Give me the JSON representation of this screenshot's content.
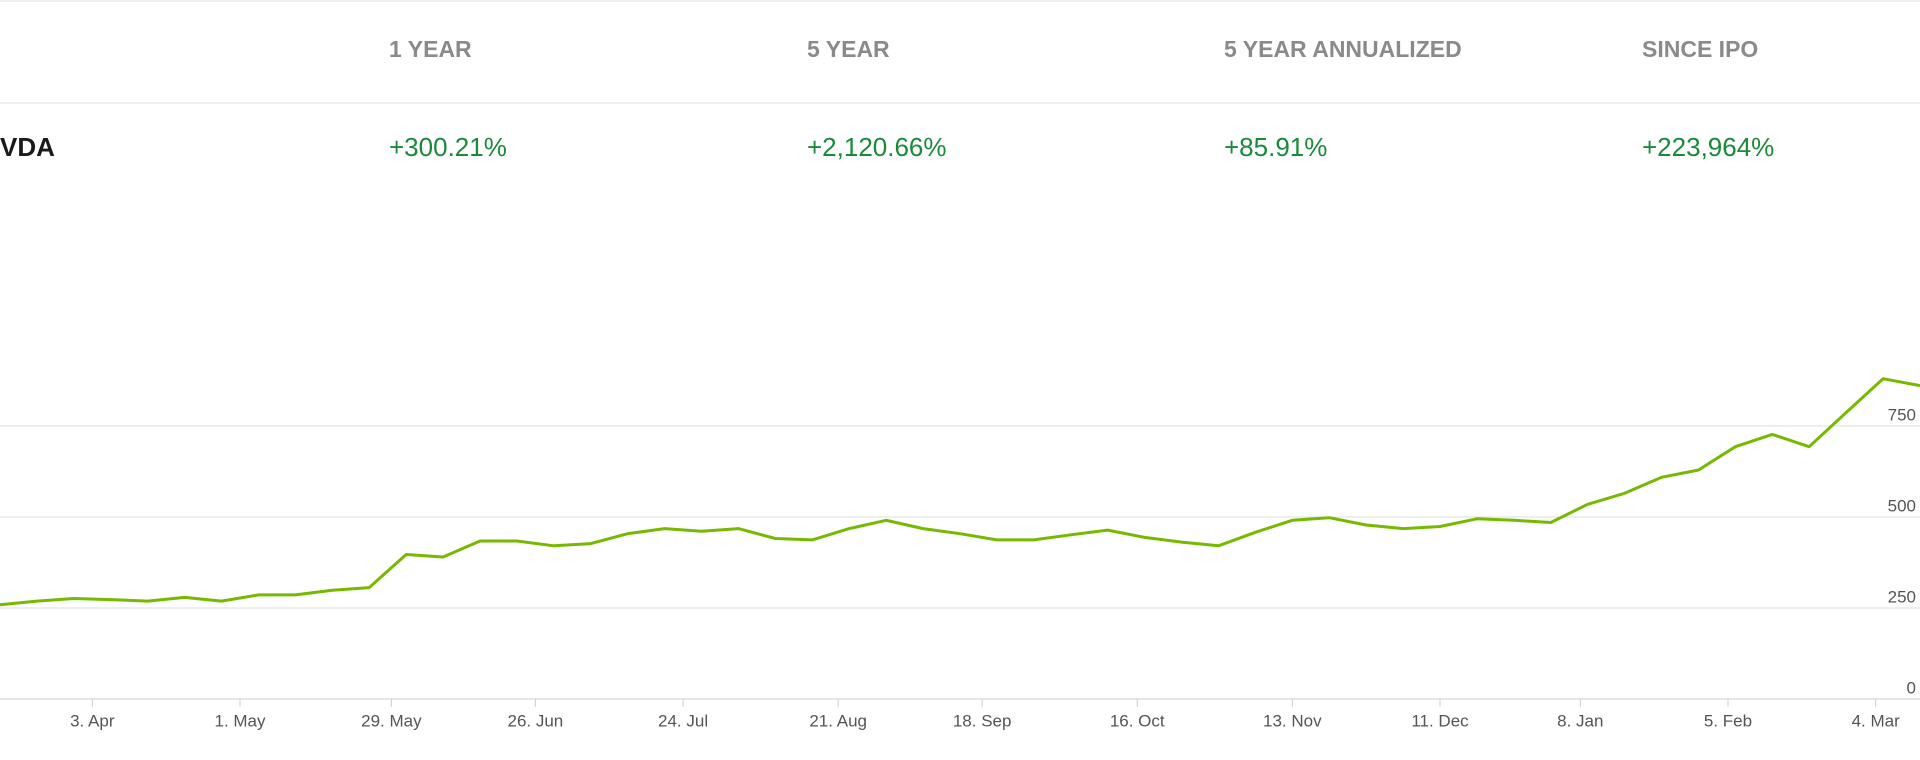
{
  "table": {
    "headers": [
      "1 YEAR",
      "5 YEAR",
      "5 YEAR ANNUALIZED",
      "SINCE IPO"
    ],
    "rows": [
      {
        "name": "VDA",
        "values": [
          "+300.21%",
          "+2,120.66%",
          "+85.91%",
          "+223,964%"
        ]
      }
    ]
  },
  "chart_data": {
    "type": "line",
    "series": [
      {
        "color": "#76b900",
        "values": [
          259,
          269,
          276,
          273,
          269,
          279,
          269,
          286,
          286,
          299,
          306,
          397,
          390,
          434,
          434,
          421,
          427,
          454,
          468,
          461,
          468,
          441,
          437,
          468,
          491,
          468,
          454,
          437,
          437,
          451,
          464,
          444,
          431,
          421,
          458,
          491,
          498,
          478,
          468,
          474,
          495,
          491,
          485,
          535,
          565,
          609,
          629,
          693,
          727,
          693,
          787,
          880,
          861
        ]
      }
    ],
    "xlim": [
      0,
      52
    ],
    "xticks": [
      {
        "value": 2.5,
        "label": "3. Apr"
      },
      {
        "value": 6.5,
        "label": "1. May"
      },
      {
        "value": 10.6,
        "label": "29. May"
      },
      {
        "value": 14.5,
        "label": "26. Jun"
      },
      {
        "value": 18.5,
        "label": "24. Jul"
      },
      {
        "value": 22.7,
        "label": "21. Aug"
      },
      {
        "value": 26.6,
        "label": "18. Sep"
      },
      {
        "value": 30.8,
        "label": "16. Oct"
      },
      {
        "value": 35.0,
        "label": "13. Nov"
      },
      {
        "value": 39.0,
        "label": "11. Dec"
      },
      {
        "value": 42.8,
        "label": "8. Jan"
      },
      {
        "value": 46.8,
        "label": "5. Feb"
      },
      {
        "value": 50.8,
        "label": "4. Mar"
      }
    ],
    "ylim": [
      0,
      1000
    ],
    "yticks": [
      0,
      250,
      500,
      750
    ],
    "grid": true
  }
}
